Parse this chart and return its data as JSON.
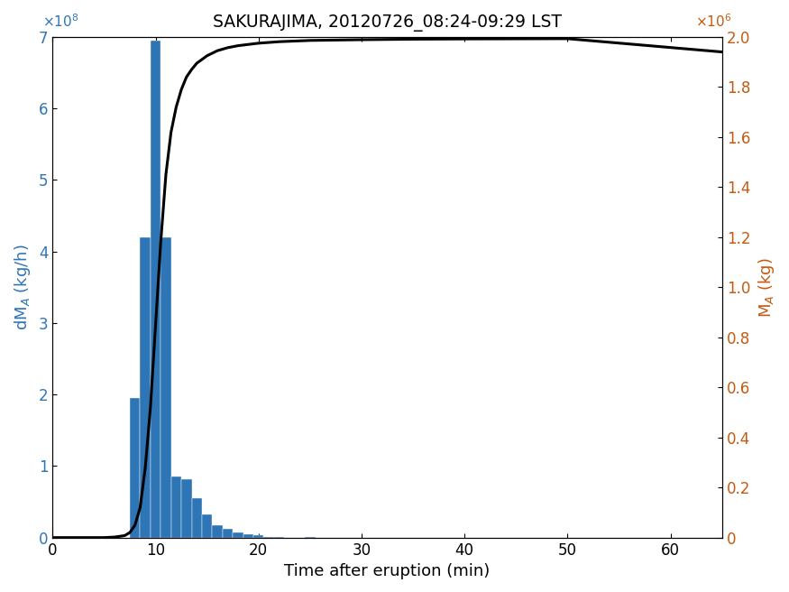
{
  "title": "SAKURAJIMA, 20120726_08:24-09:29 LST",
  "xlabel": "Time after eruption (min)",
  "bar_color": "#2e75b6",
  "line_color": "#000000",
  "left_ylabel_color": "#2e75b6",
  "right_ylabel_color": "#c55a11",
  "xlim": [
    0,
    65
  ],
  "ylim_left": [
    0,
    700000000.0
  ],
  "ylim_right": [
    0,
    2000000.0
  ],
  "bar_centers": [
    8,
    9,
    10,
    11,
    12,
    13,
    14,
    15,
    16,
    17,
    18,
    19,
    20,
    21,
    22,
    25
  ],
  "bar_heights": [
    195000000.0,
    420000000.0,
    695000000.0,
    420000000.0,
    85000000.0,
    82000000.0,
    55000000.0,
    33000000.0,
    17000000.0,
    12000000.0,
    7000000.0,
    5000000.0,
    3000000.0,
    1500000.0,
    800000.0,
    300000.0
  ],
  "bar_width": 1.0,
  "cum_line_x": [
    0,
    5,
    6,
    7,
    7.5,
    8,
    8.5,
    9,
    9.5,
    10,
    10.5,
    11,
    11.5,
    12,
    12.5,
    13,
    13.5,
    14,
    15,
    16,
    17,
    18,
    20,
    22,
    25,
    30,
    35,
    40,
    50,
    65
  ],
  "cum_line_y": [
    0,
    0,
    2000.0,
    8000.0,
    20000.0,
    50000.0,
    120000.0,
    280000.0,
    520000.0,
    850000.0,
    1180000.0,
    1450000.0,
    1620000.0,
    1720000.0,
    1790000.0,
    1840000.0,
    1870000.0,
    1895000.0,
    1925000.0,
    1945000.0,
    1957000.0,
    1965000.0,
    1975000.0,
    1981000.0,
    1986000.0,
    1989000.0,
    1991000.0,
    1992000.0,
    1993000.0,
    1940000.0
  ],
  "xticks": [
    0,
    10,
    20,
    30,
    40,
    50,
    60
  ],
  "left_yticks": [
    0,
    100000000.0,
    200000000.0,
    300000000.0,
    400000000.0,
    500000000.0,
    600000000.0,
    700000000.0
  ],
  "right_yticks": [
    0,
    200000.0,
    400000.0,
    600000.0,
    800000.0,
    1000000.0,
    1200000.0,
    1400000.0,
    1600000.0,
    1800000.0,
    2000000.0
  ],
  "left_exp_label": "x10^8",
  "right_exp_label": "x10^6"
}
